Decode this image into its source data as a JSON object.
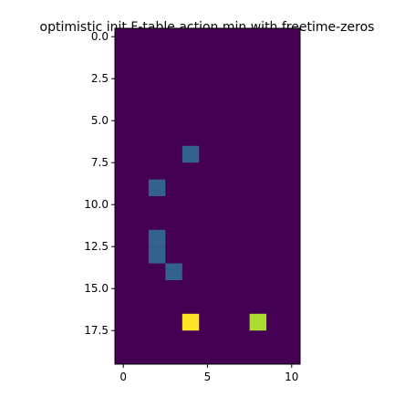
{
  "chart_data": {
    "type": "heatmap",
    "title": "optimistic init F-table action min with freetime-zeros",
    "xlabel": "",
    "ylabel": "",
    "n_rows": 20,
    "n_cols": 11,
    "xlim": [
      -0.5,
      10.5
    ],
    "ylim": [
      19.5,
      -0.5
    ],
    "xticks": [
      0,
      5,
      10
    ],
    "xtick_labels": [
      "0",
      "5",
      "10"
    ],
    "yticks": [
      0.0,
      2.5,
      5.0,
      7.5,
      10.0,
      12.5,
      15.0,
      17.5
    ],
    "ytick_labels": [
      "0.0",
      "2.5",
      "5.0",
      "7.5",
      "10.0",
      "12.5",
      "15.0",
      "17.5"
    ],
    "colormap": "viridis",
    "vmin": 0,
    "vmax": 1,
    "background_value": 0,
    "cells": [
      {
        "row": 7,
        "col": 4,
        "value": 0.25
      },
      {
        "row": 9,
        "col": 2,
        "value": 0.25
      },
      {
        "row": 12,
        "col": 2,
        "value": 0.25
      },
      {
        "row": 13,
        "col": 2,
        "value": 0.25
      },
      {
        "row": 14,
        "col": 3,
        "value": 0.25
      },
      {
        "row": 17,
        "col": 4,
        "value": 1.0
      },
      {
        "row": 17,
        "col": 8,
        "value": 0.85
      }
    ],
    "colors": {
      "background": "#440154",
      "low": "#33638d",
      "high": "#fde725",
      "mid_high": "#addc30"
    },
    "grid": false,
    "legend": "none"
  }
}
